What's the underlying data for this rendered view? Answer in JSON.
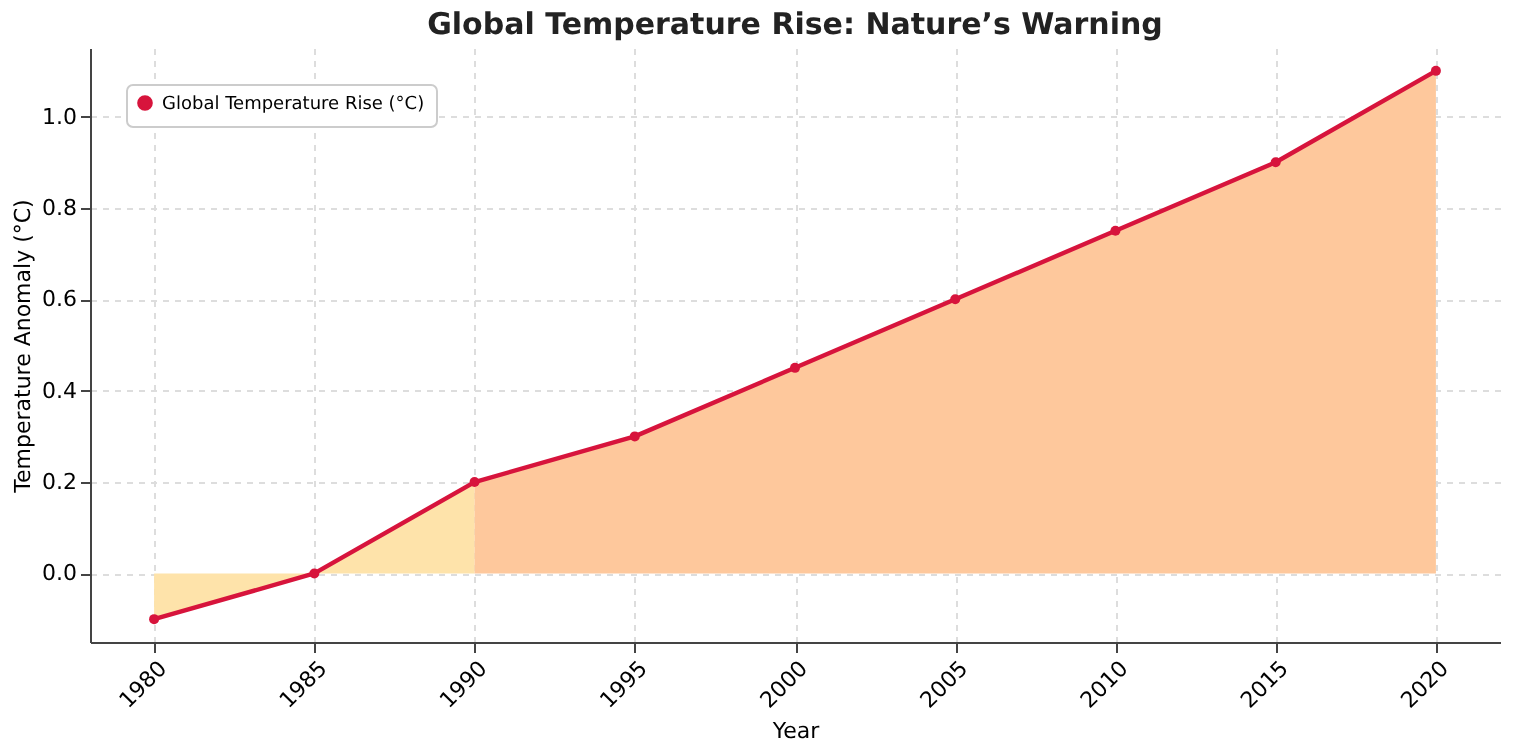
{
  "chart_data": {
    "type": "line",
    "title": "Global Temperature Rise: Nature’s Warning",
    "xlabel": "Year",
    "ylabel": "Temperature Anomaly (°C)",
    "xlim": [
      1978,
      2022
    ],
    "xticks": [
      1980,
      1985,
      1990,
      1995,
      2000,
      2005,
      2010,
      2015,
      2020
    ],
    "ylim": [
      -0.15,
      1.15
    ],
    "yticks": [
      {
        "value": 0,
        "label": "0.0"
      },
      0.2,
      0.4,
      0.6,
      0.8,
      {
        "value": 1,
        "label": "1.0"
      }
    ],
    "grid": true,
    "legend": "top left",
    "line_style": "solid",
    "series": [
      {
        "type": "area",
        "color": "#fee3aa",
        "x": [
          1980,
          1985,
          1990
        ],
        "values": [
          -0.1,
          0.0,
          0.2
        ]
      },
      {
        "type": "area",
        "color": "#fec89c",
        "x": [
          1990,
          1995,
          2000,
          2005,
          2010,
          2015,
          2020
        ],
        "values": [
          0.2,
          0.3,
          0.45,
          0.6,
          0.75,
          0.9,
          1.1
        ]
      },
      {
        "name": "Global Temperature Rise (°C)",
        "marker": "circle",
        "color": "#d7143c",
        "x": [
          1980,
          1985,
          1990,
          1995,
          2000,
          2005,
          2010,
          2015,
          2020
        ],
        "values": [
          -0.1,
          0.0,
          0.2,
          0.3,
          0.45,
          0.6,
          0.75,
          0.9,
          1.1
        ]
      }
    ]
  }
}
